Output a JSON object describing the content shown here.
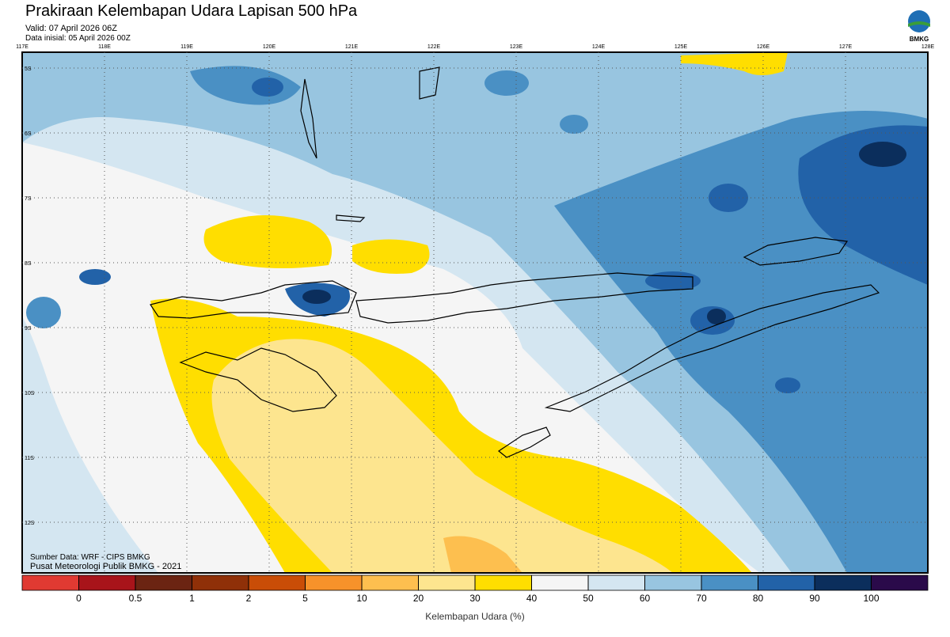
{
  "header": {
    "title": "Prakiraan Kelembapan Udara Lapisan 500 hPa",
    "valid": "Valid: 07 April 2026 06Z",
    "init": "Data inisial: 05 April 2026 00Z",
    "logo": "BMKG"
  },
  "map": {
    "lon_labels": [
      "117E",
      "118E",
      "119E",
      "120E",
      "121E",
      "122E",
      "123E",
      "124E",
      "125E",
      "126E",
      "127E",
      "128E"
    ],
    "lat_labels": [
      "5S",
      "6S",
      "7S",
      "8S",
      "9S",
      "10S",
      "11S",
      "12S"
    ],
    "source": "Sumber Data: WRF - CIPS BMKG",
    "credit": "Pusat Meteorologi Publik BMKG - 2021"
  },
  "colorbar": {
    "ticks": [
      0,
      0.5,
      1,
      2,
      5,
      10,
      20,
      30,
      40,
      50,
      60,
      70,
      80,
      90,
      100
    ],
    "colors": [
      "#e03a32",
      "#a8141a",
      "#6b2412",
      "#8f3008",
      "#c94d07",
      "#f7922a",
      "#fdbf4f",
      "#fde58f",
      "#ffde00",
      "#f5f5f5",
      "#d4e6f1",
      "#98c5e0",
      "#4a90c4",
      "#2262a8",
      "#0b2e5c",
      "#2a0a4a"
    ],
    "label": "Kelembapan Udara (%)"
  }
}
